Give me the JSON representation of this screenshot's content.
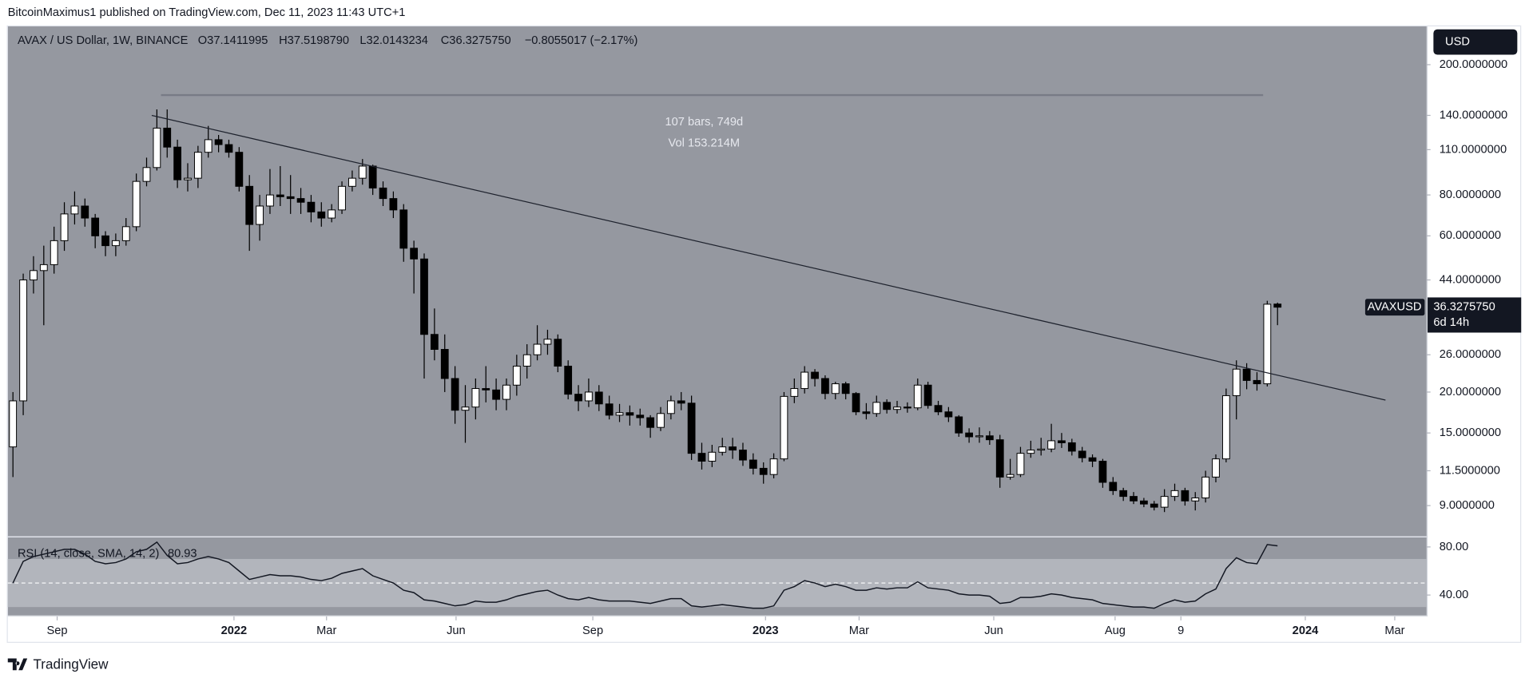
{
  "header": {
    "published": "BitcoinMaximus1 published on TradingView.com, Dec 11, 2023 11:43 UTC+1",
    "symbol": "AVAX / US Dollar, 1W, BINANCE",
    "open": "O37.1411995",
    "high": "H37.5198790",
    "low": "L32.0143234",
    "close": "C36.3275750",
    "change": "−0.8055017 (−2.17%)",
    "currency": "USD"
  },
  "price_tag": {
    "symbol": "AVAXUSD",
    "price": "36.3275750",
    "countdown": "6d 14h"
  },
  "measure": {
    "bars": "107 bars, 749d",
    "volume": "Vol 153.214M"
  },
  "footer": {
    "brand": "TradingView"
  },
  "chart_data": [
    {
      "type": "candlestick",
      "log_scale": true,
      "up_color": "#ffffff",
      "down_color": "#000000",
      "open": [
        13.6,
        18.8,
        44,
        47,
        49,
        58,
        70,
        74,
        68,
        60,
        56,
        58,
        64,
        88,
        97,
        128,
        112,
        89,
        90,
        108,
        118,
        114,
        108,
        85,
        65,
        74,
        80,
        79,
        78,
        76,
        71,
        68,
        72,
        85,
        90,
        98,
        84,
        78,
        72,
        55,
        51,
        30,
        27,
        22,
        17.6,
        18,
        20.5,
        20.3,
        19,
        21,
        24,
        26,
        28,
        29,
        24,
        19.7,
        18.8,
        20,
        18.4,
        17,
        17.3,
        17,
        16.7,
        15.6,
        17.2,
        18.8,
        18.5,
        13,
        12.3,
        13.1,
        13.6,
        13.3,
        12.4,
        11.7,
        11.2,
        12.5,
        19.4,
        20.5,
        23,
        22,
        19.8,
        21.2,
        19.8,
        17.4,
        17.2,
        18.6,
        17.7,
        18,
        17.9,
        21,
        18.2,
        17.4,
        16.8,
        15,
        14.6,
        14.7,
        14.3,
        11,
        11.2,
        13,
        13.3,
        13.4,
        14.2,
        14,
        13.2,
        12.6,
        12.3,
        10.6,
        10,
        9.6,
        9.3,
        9.1,
        8.9,
        9.6,
        10,
        9.3,
        9.5,
        11,
        12.5,
        19.5,
        23.5,
        21.7,
        21.2,
        37.1411995
      ],
      "high": [
        20,
        46,
        52,
        56,
        64,
        76,
        82,
        78,
        70,
        62,
        61,
        68,
        93,
        104,
        146,
        146,
        118,
        100,
        113,
        130,
        122,
        118,
        112,
        92,
        80,
        96,
        98,
        92,
        84,
        80,
        76,
        75,
        88,
        95,
        103,
        99,
        88,
        82,
        75,
        58,
        53,
        36,
        30,
        24,
        21,
        22,
        24,
        22,
        22,
        26,
        28,
        32,
        31,
        30,
        25,
        21,
        22,
        21,
        19.5,
        18.4,
        18.2,
        17.8,
        17,
        18,
        19.5,
        20,
        19.5,
        14,
        13.8,
        14.5,
        14.5,
        14,
        13,
        12.2,
        13,
        20,
        22,
        24,
        23.5,
        22.5,
        21.5,
        21.5,
        20,
        18.5,
        19.5,
        19,
        18.8,
        18.6,
        22,
        21.5,
        18.8,
        18,
        17,
        15.5,
        15.6,
        15.2,
        14.8,
        12.5,
        13.6,
        14.2,
        14.5,
        16,
        15,
        14.4,
        13.6,
        12.9,
        12.5,
        11,
        10.2,
        9.9,
        9.5,
        9.3,
        10.1,
        10.5,
        10.2,
        9.9,
        11.5,
        12.9,
        20.5,
        25,
        24.5,
        23,
        38,
        37.519879
      ],
      "low": [
        11,
        17,
        40,
        32,
        46,
        54,
        65,
        64,
        55,
        52,
        52,
        56,
        62,
        85,
        95,
        104,
        84,
        82,
        84,
        104,
        108,
        104,
        82,
        54,
        58,
        70,
        74,
        70,
        70,
        66,
        64,
        66,
        70,
        82,
        86,
        80,
        74,
        68,
        50,
        40,
        22,
        25,
        20,
        16,
        14,
        16.5,
        18.6,
        17.6,
        17.6,
        19.5,
        22,
        25,
        26,
        23,
        19,
        17.5,
        18,
        17.5,
        16.5,
        16.2,
        15.8,
        15.8,
        14.5,
        15.2,
        16.5,
        17.6,
        12.4,
        11.6,
        11.8,
        12.8,
        12.5,
        11.9,
        11.2,
        10.5,
        10.9,
        12.3,
        18.5,
        19.8,
        20.8,
        19,
        19,
        19,
        17,
        16.5,
        16.8,
        17.2,
        17.2,
        17.3,
        17.6,
        17.8,
        17,
        16.2,
        14.6,
        14,
        14,
        13.8,
        10.2,
        10.8,
        11,
        12.6,
        12.8,
        13.1,
        13.5,
        12.8,
        12.2,
        11.8,
        10.2,
        9.7,
        9.3,
        9.1,
        8.9,
        8.7,
        8.6,
        9.3,
        9.0,
        8.7,
        9.2,
        10.6,
        12.2,
        16.5,
        20.4,
        20.2,
        20.8,
        32.0143234
      ],
      "close": [
        18.8,
        44,
        47,
        49,
        58,
        70,
        74,
        68,
        60,
        56,
        58,
        64,
        88,
        97,
        128,
        112,
        89,
        90,
        108,
        118,
        114,
        108,
        85,
        65,
        74,
        80,
        79,
        78,
        76,
        71,
        68,
        72,
        85,
        90,
        98,
        84,
        78,
        72,
        55,
        51,
        30,
        27,
        22,
        17.6,
        18,
        20.5,
        20.3,
        19,
        21,
        24,
        26,
        28,
        29,
        24,
        19.7,
        18.8,
        20,
        18.4,
        17,
        17.3,
        17,
        16.7,
        15.6,
        17.2,
        18.8,
        18.5,
        13,
        12.3,
        13.1,
        13.6,
        13.3,
        12.4,
        11.7,
        11.2,
        12.5,
        19.4,
        20.5,
        23,
        22,
        19.8,
        21.2,
        19.8,
        17.4,
        17.2,
        18.6,
        17.7,
        18,
        17.9,
        21,
        18.2,
        17.4,
        16.8,
        15,
        14.6,
        14.7,
        14.3,
        11,
        11.2,
        13,
        13.3,
        13.4,
        14.2,
        14,
        13.2,
        12.6,
        12.3,
        10.6,
        10,
        9.6,
        9.3,
        9.1,
        8.9,
        9.6,
        10,
        9.3,
        9.5,
        11,
        12.5,
        19.5,
        23.5,
        21.7,
        21.2,
        37.1,
        36.327575
      ],
      "xlim": [
        -0.5,
        137.5
      ],
      "xticks": [
        {
          "value": 4.3,
          "label": "Sep"
        },
        {
          "value": 21.5,
          "label": "2022"
        },
        {
          "value": 30.5,
          "label": "Mar"
        },
        {
          "value": 43.1,
          "label": "Jun"
        },
        {
          "value": 56.4,
          "label": "Sep"
        },
        {
          "value": 73.2,
          "label": "2023"
        },
        {
          "value": 82.3,
          "label": "Mar"
        },
        {
          "value": 95.4,
          "label": "Jun"
        },
        {
          "value": 107.2,
          "label": "Aug"
        },
        {
          "value": 113.6,
          "label": "9"
        },
        {
          "value": 125.7,
          "label": "2024"
        },
        {
          "value": 134.4,
          "label": "Mar"
        }
      ],
      "ylim": [
        7.3,
        260
      ],
      "yticks": [
        {
          "value": 200,
          "label": "200.0000000"
        },
        {
          "value": 140,
          "label": "140.0000000"
        },
        {
          "value": 110,
          "label": "110.0000000"
        },
        {
          "value": 80,
          "label": "80.0000000"
        },
        {
          "value": 60,
          "label": "60.0000000"
        },
        {
          "value": 44,
          "label": "44.0000000"
        },
        {
          "value": 26,
          "label": "26.0000000"
        },
        {
          "value": 20,
          "label": "20.0000000"
        },
        {
          "value": 15,
          "label": "15.0000000"
        },
        {
          "value": 11.5,
          "label": "11.5000000"
        },
        {
          "value": 9,
          "label": "9.0000000"
        }
      ],
      "trendline": {
        "x": [
          13.5,
          133.5
        ],
        "y": [
          140,
          18.9
        ],
        "color": "#1e222d"
      },
      "range_line": {
        "x": [
          14.4,
          121.6
        ],
        "y": 161.5,
        "color": "#787b86"
      }
    },
    {
      "type": "line",
      "title": "RSI (14, close, SMA, 14, 2)",
      "series": [
        {
          "color": "#131722",
          "values": [
            50,
            68,
            72,
            74,
            76,
            78,
            78,
            74,
            68,
            66,
            67,
            70,
            76,
            78,
            84,
            73,
            66,
            67,
            70,
            72,
            70,
            67,
            60,
            53,
            55,
            57,
            56,
            56,
            55,
            53,
            52,
            54,
            58,
            60,
            62,
            56,
            53,
            50,
            44,
            42,
            36,
            35,
            33,
            31,
            32,
            35,
            34,
            34,
            36,
            39,
            41,
            43,
            44,
            40,
            37,
            36,
            38,
            36,
            35,
            35,
            35,
            34,
            33,
            35,
            37,
            37,
            31,
            30,
            31,
            32,
            31,
            30,
            29,
            29,
            31,
            44,
            47,
            52,
            50,
            47,
            49,
            47,
            44,
            44,
            46,
            45,
            46,
            46,
            51,
            46,
            45,
            44,
            41,
            40,
            40,
            39,
            33,
            34,
            38,
            38,
            39,
            41,
            40,
            38,
            37,
            36,
            33,
            32,
            31,
            30,
            30,
            29,
            33,
            36,
            34,
            35,
            41,
            45,
            62,
            71,
            67,
            66,
            82,
            80.93
          ]
        }
      ],
      "band": [
        30,
        70
      ],
      "midline": 50,
      "band_color": "#b2b5bc",
      "ylim": [
        23,
        88
      ],
      "yticks": [
        {
          "value": 80,
          "label": "80.00"
        },
        {
          "value": 40,
          "label": "40.00"
        }
      ]
    }
  ]
}
